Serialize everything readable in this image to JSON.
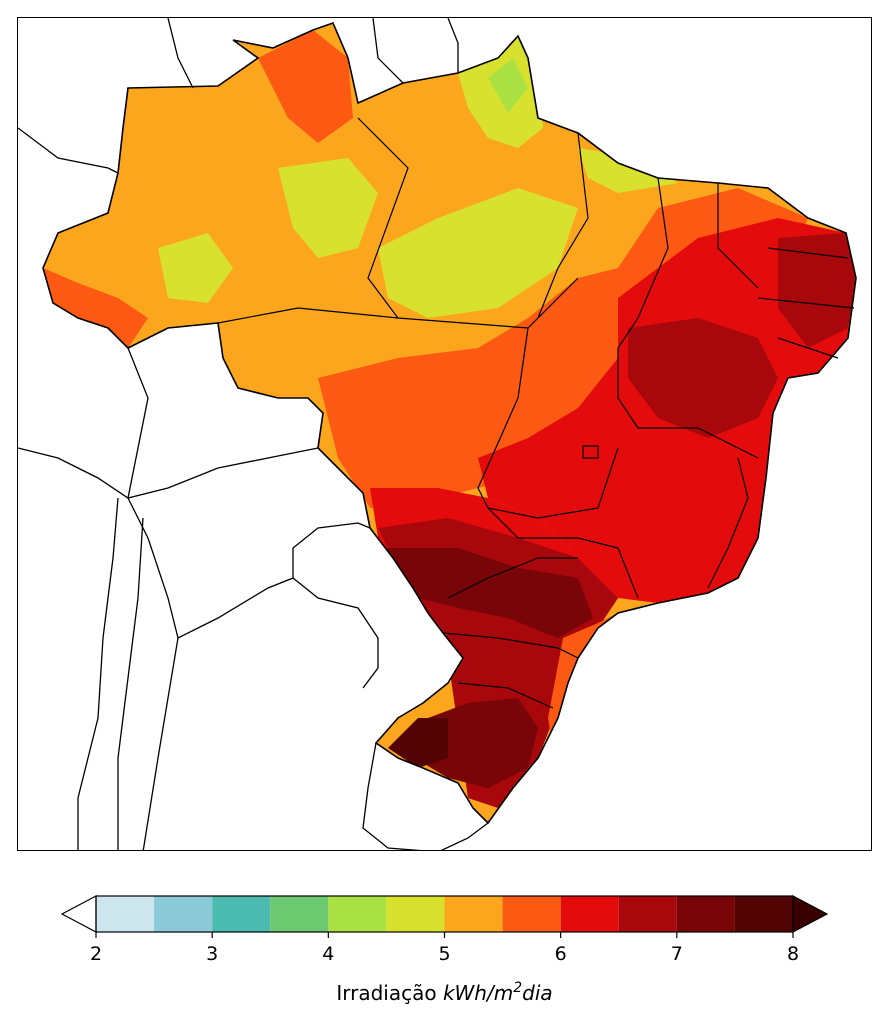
{
  "colorbar": {
    "title_prefix": "Irradiação ",
    "title_unit_main": "kWh/m",
    "title_unit_sup": "2",
    "title_unit_tail": "dia",
    "min": 2,
    "max": 8,
    "step": 0.5,
    "ticks": [
      "2",
      "3",
      "4",
      "5",
      "6",
      "7",
      "8"
    ],
    "under_color": "#ffffff",
    "over_color": "#3a0000",
    "levels": [
      {
        "from": 2.0,
        "to": 2.5,
        "color": "#cde6ee"
      },
      {
        "from": 2.5,
        "to": 3.0,
        "color": "#8ccad8"
      },
      {
        "from": 3.0,
        "to": 3.5,
        "color": "#4dbcb0"
      },
      {
        "from": 3.5,
        "to": 4.0,
        "color": "#6dc96f"
      },
      {
        "from": 4.0,
        "to": 4.5,
        "color": "#a9e142"
      },
      {
        "from": 4.5,
        "to": 5.0,
        "color": "#d8e22e"
      },
      {
        "from": 5.0,
        "to": 5.5,
        "color": "#fca61e"
      },
      {
        "from": 5.5,
        "to": 6.0,
        "color": "#fc5a12"
      },
      {
        "from": 6.0,
        "to": 6.5,
        "color": "#e30b0b"
      },
      {
        "from": 6.5,
        "to": 7.0,
        "color": "#a8070b"
      },
      {
        "from": 7.0,
        "to": 7.5,
        "color": "#780507"
      },
      {
        "from": 7.5,
        "to": 8.0,
        "color": "#520304"
      }
    ]
  },
  "map": {
    "region_levels": [
      {
        "zone": "north-amazon",
        "level": "5.0-5.5"
      },
      {
        "zone": "northeast-coast",
        "level": "6.0-6.5"
      },
      {
        "zone": "central-west",
        "level": "5.5-6.0"
      },
      {
        "zone": "southeast",
        "level": "6.0-6.5"
      },
      {
        "zone": "south",
        "level": "7.0-7.5"
      }
    ]
  }
}
